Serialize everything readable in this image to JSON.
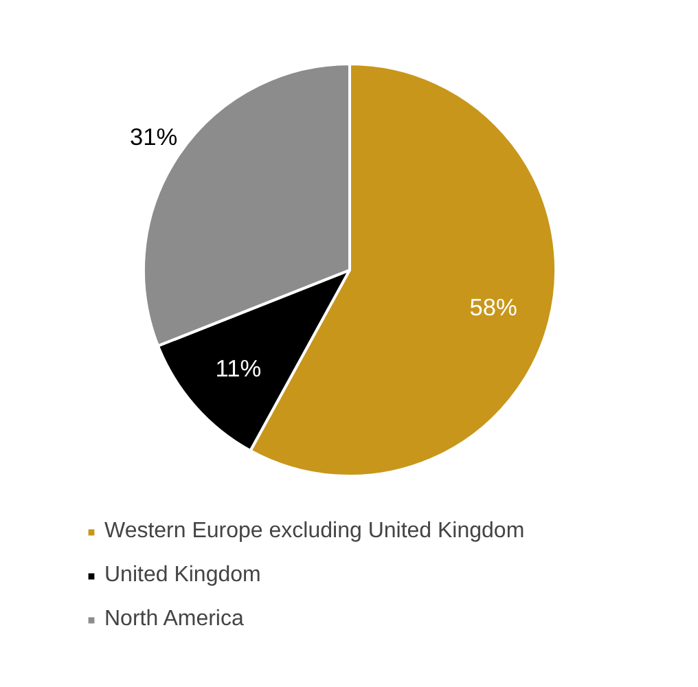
{
  "chart_data": {
    "type": "pie",
    "categories": [
      "Western Europe excluding United Kingdom",
      "United Kingdom",
      "North America"
    ],
    "values": [
      58,
      11,
      31
    ],
    "colors": [
      "#c8961a",
      "#000000",
      "#8c8c8c"
    ],
    "value_labels": [
      "58%",
      "11%",
      "31%"
    ],
    "legend": "bottom"
  }
}
